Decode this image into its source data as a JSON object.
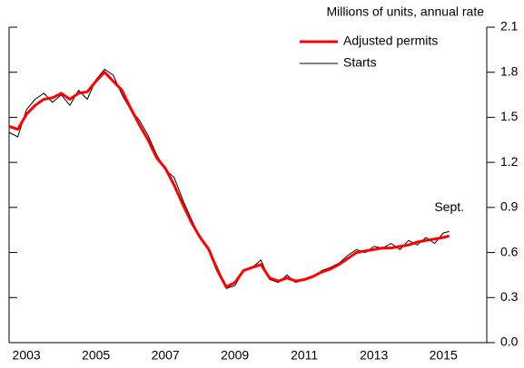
{
  "chart_data": {
    "type": "line",
    "title": "Millions of units, annual rate",
    "annotation": "Sept.",
    "x": [
      2003.0,
      2003.25,
      2003.5,
      2003.75,
      2004.0,
      2004.25,
      2004.5,
      2004.75,
      2005.0,
      2005.25,
      2005.5,
      2005.75,
      2006.0,
      2006.25,
      2006.5,
      2006.75,
      2007.0,
      2007.25,
      2007.5,
      2007.75,
      2008.0,
      2008.25,
      2008.5,
      2008.75,
      2009.0,
      2009.25,
      2009.5,
      2009.75,
      2010.0,
      2010.25,
      2010.5,
      2010.75,
      2011.0,
      2011.25,
      2011.5,
      2011.75,
      2012.0,
      2012.25,
      2012.5,
      2012.75,
      2013.0,
      2013.25,
      2013.5,
      2013.75,
      2014.0,
      2014.25,
      2014.5,
      2014.75,
      2015.0,
      2015.25,
      2015.5,
      2015.67
    ],
    "series": [
      {
        "name": "Adjusted permits",
        "color": "#ff0000",
        "width": 3,
        "values": [
          1.44,
          1.42,
          1.52,
          1.58,
          1.62,
          1.63,
          1.66,
          1.62,
          1.66,
          1.67,
          1.74,
          1.8,
          1.74,
          1.68,
          1.56,
          1.45,
          1.35,
          1.23,
          1.16,
          1.05,
          0.92,
          0.8,
          0.7,
          0.62,
          0.48,
          0.37,
          0.4,
          0.48,
          0.5,
          0.52,
          0.43,
          0.41,
          0.43,
          0.41,
          0.42,
          0.44,
          0.47,
          0.49,
          0.52,
          0.56,
          0.6,
          0.61,
          0.62,
          0.63,
          0.63,
          0.64,
          0.65,
          0.67,
          0.68,
          0.69,
          0.7,
          0.71
        ]
      },
      {
        "name": "Starts",
        "color": "#000000",
        "width": 1,
        "values": [
          1.4,
          1.37,
          1.55,
          1.62,
          1.66,
          1.6,
          1.65,
          1.58,
          1.68,
          1.62,
          1.75,
          1.82,
          1.78,
          1.65,
          1.55,
          1.48,
          1.38,
          1.25,
          1.15,
          1.1,
          0.95,
          0.82,
          0.7,
          0.62,
          0.5,
          0.36,
          0.38,
          0.48,
          0.5,
          0.55,
          0.42,
          0.4,
          0.45,
          0.4,
          0.42,
          0.44,
          0.48,
          0.5,
          0.53,
          0.58,
          0.62,
          0.6,
          0.64,
          0.63,
          0.66,
          0.62,
          0.68,
          0.65,
          0.7,
          0.66,
          0.73,
          0.74
        ]
      }
    ],
    "xlim": [
      2003,
      2016.75
    ],
    "xticks": [
      {
        "value": 2003.5,
        "label": "2003"
      },
      {
        "value": 2005.5,
        "label": "2005"
      },
      {
        "value": 2007.5,
        "label": "2007"
      },
      {
        "value": 2009.5,
        "label": "2009"
      },
      {
        "value": 2011.5,
        "label": "2011"
      },
      {
        "value": 2013.5,
        "label": "2013"
      },
      {
        "value": 2015.5,
        "label": "2015"
      }
    ],
    "ylim": [
      0,
      2.1
    ],
    "yticks": [
      {
        "value": 0,
        "label": "0.0"
      },
      0.3,
      0.6,
      0.9,
      1.2,
      1.5,
      1.8,
      2.1
    ],
    "legend": "upper right"
  }
}
